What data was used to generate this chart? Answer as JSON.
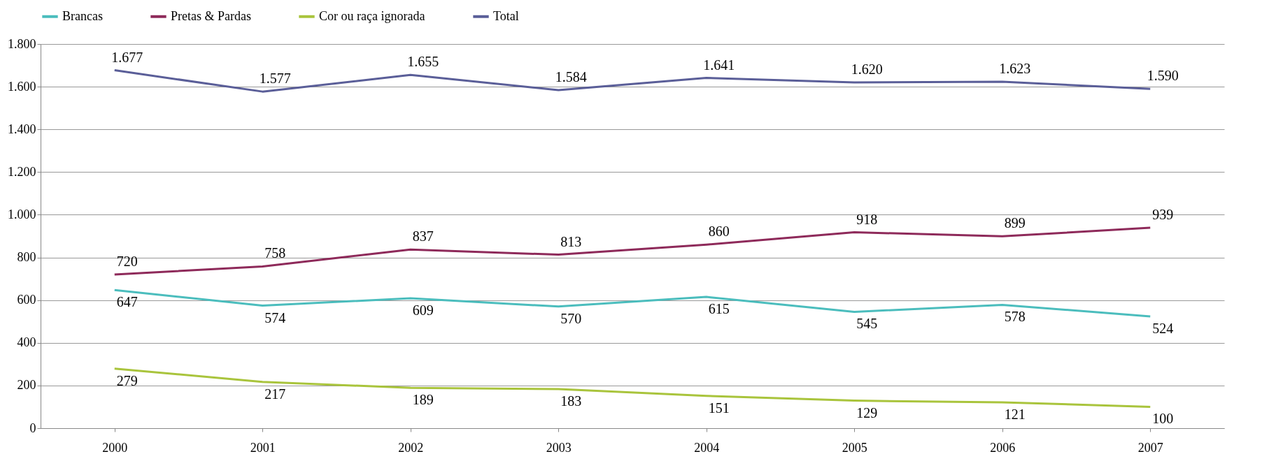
{
  "chart_data": {
    "type": "line",
    "categories": [
      "2000",
      "2001",
      "2002",
      "2003",
      "2004",
      "2005",
      "2006",
      "2007"
    ],
    "series": [
      {
        "name": "Brancas",
        "color": "#4bbdbd",
        "values": [
          647,
          574,
          609,
          570,
          615,
          545,
          578,
          524
        ],
        "value_labels": [
          "647",
          "574",
          "609",
          "570",
          "615",
          "545",
          "578",
          "524"
        ]
      },
      {
        "name": "Pretas & Pardas",
        "color": "#8e2a5a",
        "values": [
          720,
          758,
          837,
          813,
          860,
          918,
          899,
          939
        ],
        "value_labels": [
          "720",
          "758",
          "837",
          "813",
          "860",
          "918",
          "899",
          "939"
        ]
      },
      {
        "name": "Cor ou raça ignorada",
        "color": "#a9c43c",
        "values": [
          279,
          217,
          189,
          183,
          151,
          129,
          121,
          100
        ],
        "value_labels": [
          "279",
          "217",
          "189",
          "183",
          "151",
          "129",
          "121",
          "100"
        ]
      },
      {
        "name": "Total",
        "color": "#5a5e98",
        "values": [
          1677,
          1577,
          1655,
          1584,
          1641,
          1620,
          1623,
          1590
        ],
        "value_labels": [
          "1.677",
          "1.577",
          "1.655",
          "1.584",
          "1.641",
          "1.620",
          "1.623",
          "1.590"
        ]
      }
    ],
    "ylim": [
      0,
      1800
    ],
    "yticks": [
      0,
      200,
      400,
      600,
      800,
      {
        "value": 1000,
        "label": "1.000"
      },
      {
        "value": 1200,
        "label": "1.200"
      },
      {
        "value": 1400,
        "label": "1.400"
      },
      {
        "value": 1600,
        "label": "1.600"
      },
      {
        "value": 1800,
        "label": "1.800"
      }
    ],
    "grid": "y",
    "legend": "top",
    "line_style": "solid",
    "marker": "none"
  }
}
